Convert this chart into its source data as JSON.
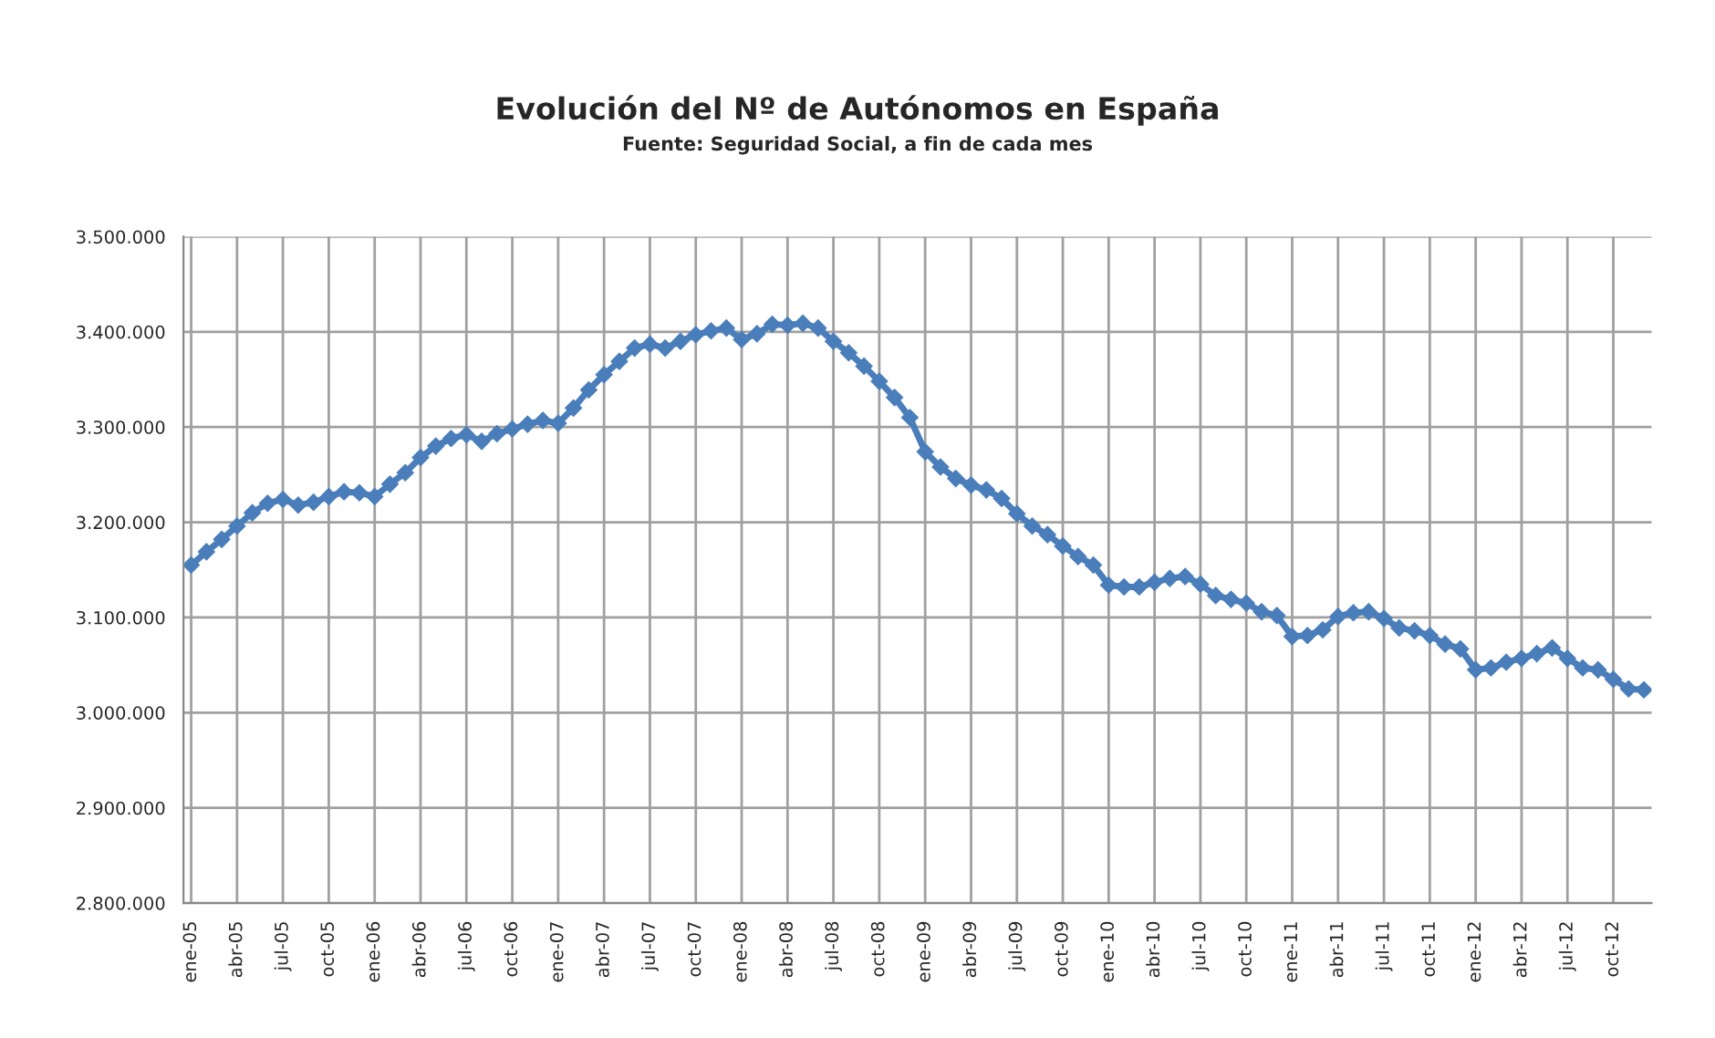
{
  "chart_data": {
    "type": "line",
    "title": "Evolución del Nº de Autónomos en España",
    "subtitle": "Fuente: Seguridad Social, a fin de cada mes",
    "categories": [
      "ene-05",
      null,
      null,
      "abr-05",
      null,
      null,
      "jul-05",
      null,
      null,
      "oct-05",
      null,
      null,
      "ene-06",
      null,
      null,
      "abr-06",
      null,
      null,
      "jul-06",
      null,
      null,
      "oct-06",
      null,
      null,
      "ene-07",
      null,
      null,
      "abr-07",
      null,
      null,
      "jul-07",
      null,
      null,
      "oct-07",
      null,
      null,
      "ene-08",
      null,
      null,
      "abr-08",
      null,
      null,
      "jul-08",
      null,
      null,
      "oct-08",
      null,
      null,
      "ene-09",
      null,
      null,
      "abr-09",
      null,
      null,
      "jul-09",
      null,
      null,
      "oct-09",
      null,
      null,
      "ene-10",
      null,
      null,
      "abr-10",
      null,
      null,
      "jul-10",
      null,
      null,
      "oct-10",
      null,
      null,
      "ene-11",
      null,
      null,
      "abr-11",
      null,
      null,
      "jul-11",
      null,
      null,
      "oct-11",
      null,
      null,
      "ene-12",
      null,
      null,
      "abr-12",
      null,
      null,
      "jul-12",
      null,
      null,
      "oct-12",
      null,
      null
    ],
    "series": [
      {
        "color": "#4a7ebb",
        "values": [
          3155000,
          3169000,
          3182000,
          3196000,
          3210000,
          3220000,
          3224000,
          3218000,
          3221000,
          3227000,
          3232000,
          3231000,
          3227000,
          3240000,
          3252000,
          3268000,
          3280000,
          3288000,
          3292000,
          3285000,
          3293000,
          3298000,
          3303000,
          3307000,
          3304000,
          3320000,
          3339000,
          3355000,
          3369000,
          3383000,
          3387000,
          3383000,
          3390000,
          3397000,
          3401000,
          3404000,
          3392000,
          3398000,
          3408000,
          3407000,
          3409000,
          3404000,
          3390000,
          3378000,
          3364000,
          3348000,
          3331000,
          3310000,
          3274000,
          3258000,
          3246000,
          3239000,
          3234000,
          3225000,
          3209000,
          3196000,
          3187000,
          3175000,
          3164000,
          3155000,
          3134000,
          3132000,
          3132000,
          3137000,
          3141000,
          3143000,
          3135000,
          3123000,
          3119000,
          3115000,
          3106000,
          3102000,
          3080000,
          3081000,
          3087000,
          3101000,
          3105000,
          3106000,
          3099000,
          3089000,
          3086000,
          3081000,
          3072000,
          3067000,
          3045000,
          3047000,
          3053000,
          3057000,
          3062000,
          3068000,
          3057000,
          3047000,
          3045000,
          3035000,
          3025000,
          3024000
        ]
      }
    ],
    "ylim": [
      2800000,
      3500000
    ],
    "yticks": [
      {
        "value": 2800000,
        "label": "2.800.000"
      },
      {
        "value": 2900000,
        "label": "2.900.000"
      },
      {
        "value": 3000000,
        "label": "3.000.000"
      },
      {
        "value": 3100000,
        "label": "3.100.000"
      },
      {
        "value": 3200000,
        "label": "3.200.000"
      },
      {
        "value": 3300000,
        "label": "3.300.000"
      },
      {
        "value": 3400000,
        "label": "3.400.000"
      },
      {
        "value": 3500000,
        "label": "3.500.000"
      }
    ],
    "grid": true,
    "legend": false,
    "marker": "diamond",
    "line_style": "solid"
  }
}
